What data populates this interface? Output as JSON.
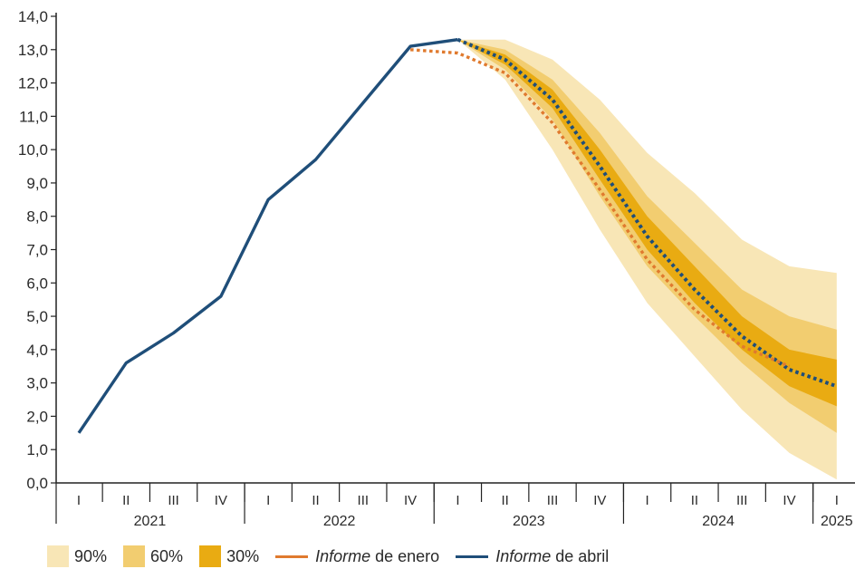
{
  "chart_data": {
    "type": "line",
    "title": "",
    "xlabel": "",
    "ylabel": "",
    "ylim": [
      0,
      14
    ],
    "yticks": [
      "0,0",
      "1,0",
      "2,0",
      "3,0",
      "4,0",
      "5,0",
      "6,0",
      "7,0",
      "8,0",
      "9,0",
      "10,0",
      "11,0",
      "12,0",
      "13,0",
      "14,0"
    ],
    "quarters": [
      "I",
      "II",
      "III",
      "IV",
      "I",
      "II",
      "III",
      "IV",
      "I",
      "II",
      "III",
      "IV",
      "I",
      "II",
      "III",
      "IV",
      "I"
    ],
    "years": [
      "2021",
      "2022",
      "2023",
      "2024",
      "2025"
    ],
    "series": [
      {
        "name": "Informe de abril",
        "color": "#1f4e79",
        "style": "solid-then-dotted",
        "values": [
          1.5,
          3.6,
          4.5,
          5.6,
          8.5,
          9.7,
          11.4,
          13.1,
          13.3,
          12.7,
          11.5,
          9.5,
          7.4,
          5.8,
          4.4,
          3.4,
          2.9
        ]
      },
      {
        "name": "Informe de enero",
        "color": "#e07a2e",
        "style": "dotted",
        "start_index": 7,
        "values": [
          13.0,
          12.9,
          12.3,
          10.8,
          8.8,
          6.7,
          5.2,
          4.1,
          3.5
        ]
      }
    ],
    "fan": {
      "start_index": 8,
      "bands": [
        {
          "name": "90%",
          "color": "#f8e6b6",
          "lower": [
            13.3,
            12.1,
            10.0,
            7.6,
            5.4,
            3.8,
            2.2,
            0.9,
            0.1
          ],
          "upper": [
            13.3,
            13.3,
            12.7,
            11.5,
            9.9,
            8.7,
            7.3,
            6.5,
            6.3
          ]
        },
        {
          "name": "60%",
          "color": "#f2cd70",
          "lower": [
            13.3,
            12.4,
            10.9,
            8.6,
            6.5,
            5.0,
            3.6,
            2.4,
            1.5
          ],
          "upper": [
            13.3,
            13.0,
            12.1,
            10.5,
            8.6,
            7.2,
            5.8,
            5.0,
            4.6
          ]
        },
        {
          "name": "30%",
          "color": "#e9ab12",
          "lower": [
            13.3,
            12.55,
            11.25,
            9.1,
            7.0,
            5.4,
            4.0,
            2.9,
            2.3
          ],
          "upper": [
            13.3,
            12.85,
            11.8,
            10.0,
            8.0,
            6.5,
            5.0,
            4.0,
            3.7
          ]
        }
      ]
    },
    "legend": [
      {
        "type": "swatch",
        "color": "#f8e6b6",
        "label": "90%"
      },
      {
        "type": "swatch",
        "color": "#f2cd70",
        "label": "60%"
      },
      {
        "type": "swatch",
        "color": "#e9ab12",
        "label": "30%"
      },
      {
        "type": "line",
        "color": "#e07a2e",
        "label_em": "Informe",
        "label_rest": " de enero"
      },
      {
        "type": "line",
        "color": "#1f4e79",
        "label_em": "Informe",
        "label_rest": " de abril"
      }
    ],
    "grid": false,
    "legend_position": "bottom"
  }
}
